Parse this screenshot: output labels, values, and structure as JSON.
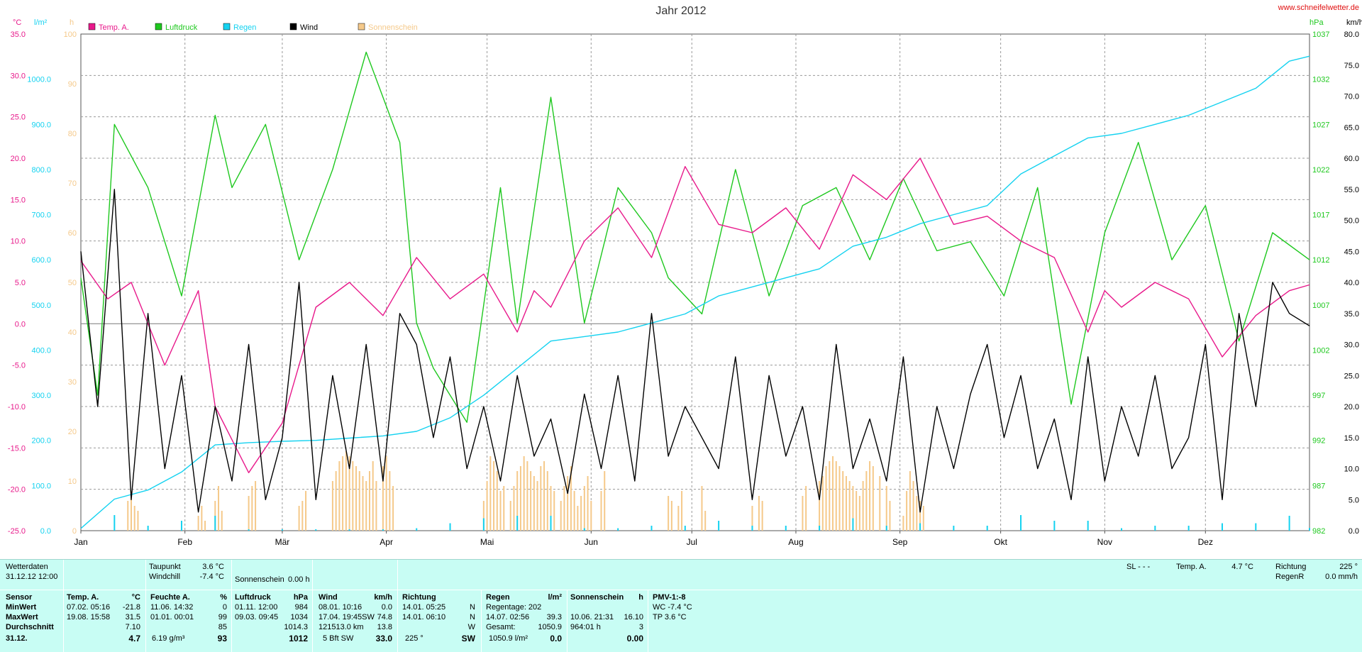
{
  "page": {
    "title": "Jahr 2012",
    "watermark": "www.schneifelwetter.de"
  },
  "chart_data": {
    "type": "line",
    "title": "Jahr 2012",
    "x_months": [
      "Jan",
      "Feb",
      "Mär",
      "Apr",
      "Mai",
      "Jun",
      "Jul",
      "Aug",
      "Sep",
      "Okt",
      "Nov",
      "Dez"
    ],
    "axes": {
      "temp": {
        "unit": "°C",
        "min": -25,
        "max": 35,
        "ticks": [
          "35.0",
          "30.0",
          "25.0",
          "20.0",
          "15.0",
          "10.0",
          "5.0",
          "0.0",
          "-5.0",
          "-10.0",
          "-15.0",
          "-20.0",
          "-25.0"
        ],
        "color": "#e8198b"
      },
      "rain": {
        "unit": "l/m²",
        "min": 0,
        "max": 1100,
        "ticks": [
          "1000.0",
          "900.0",
          "800.0",
          "700.0",
          "600.0",
          "500.0",
          "400.0",
          "300.0",
          "200.0",
          "100.0",
          "0.0"
        ],
        "color": "#14d2f0"
      },
      "sun": {
        "unit": "h",
        "min": 0,
        "max": 100,
        "ticks": [
          "100",
          "90",
          "80",
          "70",
          "60",
          "50",
          "40",
          "30",
          "20",
          "10",
          "0"
        ],
        "color": "#f5c98a"
      },
      "pressure": {
        "unit": "hPa",
        "min": 982,
        "max": 1037,
        "ticks": [
          "1037",
          "1032",
          "1027",
          "1022",
          "1017",
          "1012",
          "1007",
          "1002",
          "997",
          "992",
          "987",
          "982"
        ],
        "color": "#1ec81e"
      },
      "wind": {
        "unit": "km/h",
        "min": 0,
        "max": 80,
        "ticks": [
          "80.0",
          "75.0",
          "70.0",
          "65.0",
          "60.0",
          "55.0",
          "50.0",
          "45.0",
          "40.0",
          "35.0",
          "30.0",
          "25.0",
          "20.0",
          "15.0",
          "10.0",
          "5.0",
          "0.0"
        ],
        "color": "#000000"
      }
    },
    "legend": [
      {
        "name": "Temp. A.",
        "color": "#e8198b"
      },
      {
        "name": "Luftdruck",
        "color": "#1ec81e"
      },
      {
        "name": "Regen",
        "color": "#14d2f0"
      },
      {
        "name": "Wind",
        "color": "#000000"
      },
      {
        "name": "Sonnenschein",
        "color": "#f5c98a"
      }
    ],
    "legend_placement": "top-left",
    "grid": true,
    "series": [
      {
        "name": "Temp. A.",
        "axis": "temp",
        "x": [
          0,
          8,
          15,
          25,
          35,
          40,
          50,
          60,
          70,
          80,
          90,
          100,
          110,
          120,
          130,
          135,
          140,
          150,
          160,
          170,
          180,
          190,
          200,
          210,
          220,
          230,
          240,
          250,
          260,
          270,
          280,
          290,
          300,
          305,
          310,
          320,
          330,
          340,
          350,
          360,
          366
        ],
        "values": [
          7.6,
          3.0,
          5.0,
          -5.0,
          4.0,
          -10.0,
          -18.0,
          -12.0,
          2.0,
          5.0,
          1.0,
          8.0,
          3.0,
          6.0,
          -1.0,
          4.0,
          2.0,
          10.0,
          14.0,
          8.0,
          19.0,
          12.0,
          11.0,
          14.0,
          9.0,
          18.0,
          15.0,
          20.0,
          12.0,
          13.0,
          10.0,
          8.0,
          -1.0,
          4.0,
          2.0,
          5.0,
          3.0,
          -4.0,
          1.0,
          4.0,
          4.7
        ]
      },
      {
        "name": "Luftdruck",
        "axis": "pressure",
        "x": [
          0,
          5,
          10,
          20,
          30,
          40,
          45,
          55,
          65,
          75,
          85,
          95,
          100,
          105,
          115,
          125,
          130,
          140,
          150,
          160,
          170,
          175,
          185,
          195,
          205,
          215,
          225,
          235,
          245,
          255,
          265,
          275,
          285,
          295,
          305,
          315,
          325,
          335,
          345,
          355,
          366
        ],
        "values": [
          1010,
          997,
          1027,
          1020,
          1008,
          1028,
          1020,
          1027,
          1012,
          1022,
          1035,
          1025,
          1005,
          1000,
          994,
          1020,
          1005,
          1030,
          1005,
          1020,
          1015,
          1010,
          1006,
          1022,
          1008,
          1018,
          1020,
          1012,
          1021,
          1013,
          1014,
          1008,
          1020,
          996,
          1015,
          1025,
          1012,
          1018,
          1003,
          1015,
          1012
        ]
      },
      {
        "name": "Regen",
        "axis": "rain",
        "x": [
          0,
          10,
          20,
          30,
          40,
          50,
          60,
          70,
          80,
          90,
          100,
          110,
          120,
          130,
          140,
          150,
          160,
          170,
          180,
          190,
          200,
          210,
          220,
          230,
          240,
          250,
          260,
          270,
          280,
          290,
          300,
          310,
          320,
          330,
          340,
          350,
          360,
          366
        ],
        "values": [
          5,
          70,
          90,
          130,
          190,
          195,
          198,
          200,
          205,
          210,
          220,
          250,
          300,
          360,
          420,
          430,
          440,
          460,
          480,
          520,
          540,
          560,
          580,
          630,
          650,
          680,
          700,
          720,
          790,
          830,
          870,
          880,
          900,
          920,
          950,
          980,
          1040,
          1050.9
        ]
      },
      {
        "name": "Wind",
        "axis": "wind",
        "x": [
          0,
          5,
          10,
          15,
          20,
          25,
          30,
          35,
          40,
          45,
          50,
          55,
          60,
          65,
          70,
          75,
          80,
          85,
          90,
          95,
          100,
          105,
          110,
          115,
          120,
          125,
          130,
          135,
          140,
          145,
          150,
          155,
          160,
          165,
          170,
          175,
          180,
          185,
          190,
          195,
          200,
          205,
          210,
          215,
          220,
          225,
          230,
          235,
          240,
          245,
          250,
          255,
          260,
          265,
          270,
          275,
          280,
          285,
          290,
          295,
          300,
          305,
          310,
          315,
          320,
          325,
          330,
          335,
          340,
          345,
          350,
          355,
          360,
          366
        ],
        "values": [
          45,
          20,
          55,
          5,
          35,
          10,
          25,
          3,
          20,
          8,
          30,
          5,
          15,
          40,
          5,
          25,
          10,
          30,
          8,
          35,
          30,
          15,
          28,
          10,
          20,
          8,
          25,
          12,
          18,
          6,
          22,
          10,
          25,
          8,
          35,
          12,
          20,
          15,
          10,
          28,
          5,
          25,
          12,
          20,
          5,
          30,
          10,
          18,
          8,
          28,
          3,
          20,
          10,
          22,
          30,
          15,
          25,
          10,
          18,
          5,
          28,
          8,
          20,
          12,
          25,
          10,
          15,
          30,
          5,
          35,
          20,
          40,
          35,
          33
        ]
      },
      {
        "name": "Sonnenschein",
        "axis": "sun",
        "x": [
          14,
          15,
          16,
          17,
          35,
          36,
          37,
          40,
          41,
          42,
          50,
          51,
          52,
          65,
          66,
          67,
          75,
          76,
          77,
          78,
          79,
          80,
          81,
          82,
          83,
          84,
          85,
          86,
          87,
          88,
          90,
          91,
          92,
          93,
          120,
          121,
          122,
          123,
          124,
          125,
          126,
          128,
          129,
          130,
          131,
          132,
          133,
          134,
          135,
          136,
          137,
          138,
          139,
          140,
          141,
          143,
          144,
          145,
          146,
          147,
          148,
          149,
          150,
          151,
          152,
          155,
          156,
          175,
          176,
          178,
          179,
          185,
          186,
          200,
          202,
          203,
          215,
          216,
          220,
          221,
          222,
          223,
          224,
          225,
          226,
          227,
          228,
          229,
          230,
          231,
          232,
          233,
          234,
          235,
          236,
          238,
          240,
          241,
          245,
          246,
          247,
          248,
          249,
          250,
          251
        ],
        "values": [
          6,
          8,
          5,
          4,
          3,
          5,
          2,
          6,
          9,
          4,
          7,
          9,
          10,
          5,
          6,
          8,
          10,
          12,
          14,
          15,
          16,
          15,
          14,
          13,
          12,
          11,
          10,
          12,
          14,
          10,
          13,
          15,
          12,
          9,
          6,
          10,
          15,
          14,
          12,
          8,
          9,
          6,
          9,
          12,
          13,
          15,
          14,
          12,
          11,
          10,
          13,
          14,
          12,
          9,
          8,
          6,
          9,
          11,
          13,
          8,
          5,
          7,
          9,
          11,
          6,
          8,
          12,
          7,
          6,
          5,
          8,
          9,
          4,
          5,
          7,
          6,
          7,
          9,
          10,
          11,
          13,
          14,
          15,
          14,
          13,
          12,
          11,
          10,
          9,
          8,
          7,
          10,
          12,
          14,
          13,
          11,
          9,
          6,
          3,
          8,
          12,
          10,
          7,
          6,
          5
        ]
      }
    ]
  },
  "panel": {
    "head": {
      "wetterdaten_label": "Wetterdaten",
      "wetterdaten_value": "31.12.12 12:00",
      "taupunkt_label": "Taupunkt",
      "taupunkt_value": "3.6 °C",
      "windchill_label": "Windchill",
      "windchill_value": "-7.4 °C",
      "sonnenschein_label": "Sonnenschein",
      "sonnenschein_value": "0.00 h",
      "sl_label": "SL - - -",
      "temp_label": "Temp. A.",
      "temp_value": "4.7 °C",
      "richtung_label": "Richtung",
      "richtung_value": "225 °",
      "regenr_label": "RegenR",
      "regenr_value": "0.0 mm/h"
    },
    "rowlabels": [
      "Sensor",
      "MinWert",
      "MaxWert",
      "Durchschnitt",
      "31.12."
    ],
    "temp": {
      "title": "Temp. A.",
      "unit": "°C",
      "min_time": "07.02.  05:16",
      "min": "-21.8",
      "max_time": "19.08.  15:58",
      "max": "31.5",
      "avg": "7.10",
      "now": "4.7"
    },
    "feuchte": {
      "title": "Feuchte A.",
      "unit": "%",
      "min_time": "11.06.  14:32",
      "min": "0",
      "max_time": "01.01.  00:01",
      "max": "99",
      "avg": "85",
      "now_extra": "6.19 g/m³",
      "now": "93"
    },
    "luftdruck": {
      "title": "Luftdruck",
      "unit": "hPa",
      "min_time": "01.11.  12:00",
      "min": "984",
      "max_time": "09.03.  09:45",
      "max": "1034",
      "avg": "1014.3",
      "now": "1012"
    },
    "wind": {
      "title": "Wind",
      "unit": "km/h",
      "min_time": "08.01.  10:16",
      "min": "0.0",
      "max_time": "17.04.  19:45SW",
      "max": "74.8",
      "avg_extra": "121513.0 km",
      "avg": "13.8",
      "now_extra": "5 Bft SW",
      "now": "33.0"
    },
    "richtung": {
      "title": "Richtung",
      "min_time": "14.01.  05:25",
      "min": "N",
      "max_time": "14.01.  06:10",
      "max": "N",
      "avg": "W",
      "now_extra": "225 °",
      "now": "SW"
    },
    "regen": {
      "title": "Regen",
      "unit": "l/m²",
      "tage": "Regentage: 202",
      "max_time": "14.07.  02:56",
      "max": "39.3",
      "gesamt_label": "Gesamt:",
      "gesamt": "1050.9",
      "now_extra": "1050.9 l/m²",
      "now": "0.0"
    },
    "sonne": {
      "title": "Sonnenschein",
      "unit": "h",
      "max_time": "10.06.  21:31",
      "max": "16.10",
      "total": "964:01 h",
      "avg": "3",
      "now": "0.00"
    },
    "pmv": {
      "title": "PMV-1:-8",
      "wc": "WC -7.4 °C",
      "tp": "TP 3.6 °C"
    }
  }
}
